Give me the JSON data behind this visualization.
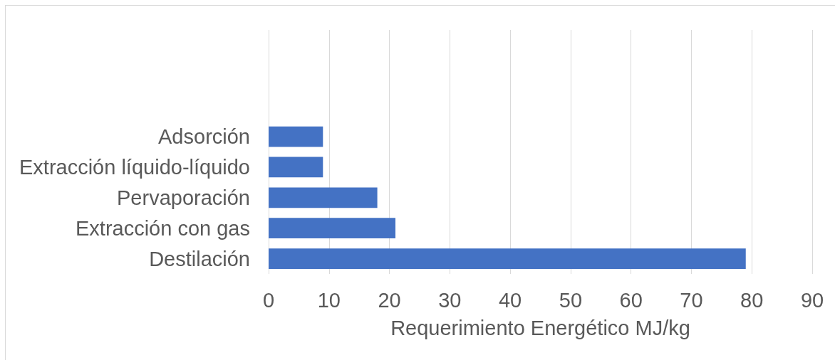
{
  "chart_data": {
    "type": "bar",
    "orientation": "horizontal",
    "categories": [
      null,
      null,
      null,
      "Adsorción",
      "Extracción líquido-líquido",
      "Pervaporación",
      "Extracción con gas",
      "Destilación"
    ],
    "values": [
      null,
      null,
      null,
      9,
      9,
      18,
      21,
      79
    ],
    "color": "#4472c4",
    "xlabel": "Requerimiento Energético MJ/kg",
    "xlim": [
      0,
      90
    ],
    "xticks": [
      0,
      10,
      20,
      30,
      40,
      50,
      60,
      70,
      80,
      90
    ],
    "grid": "x"
  }
}
